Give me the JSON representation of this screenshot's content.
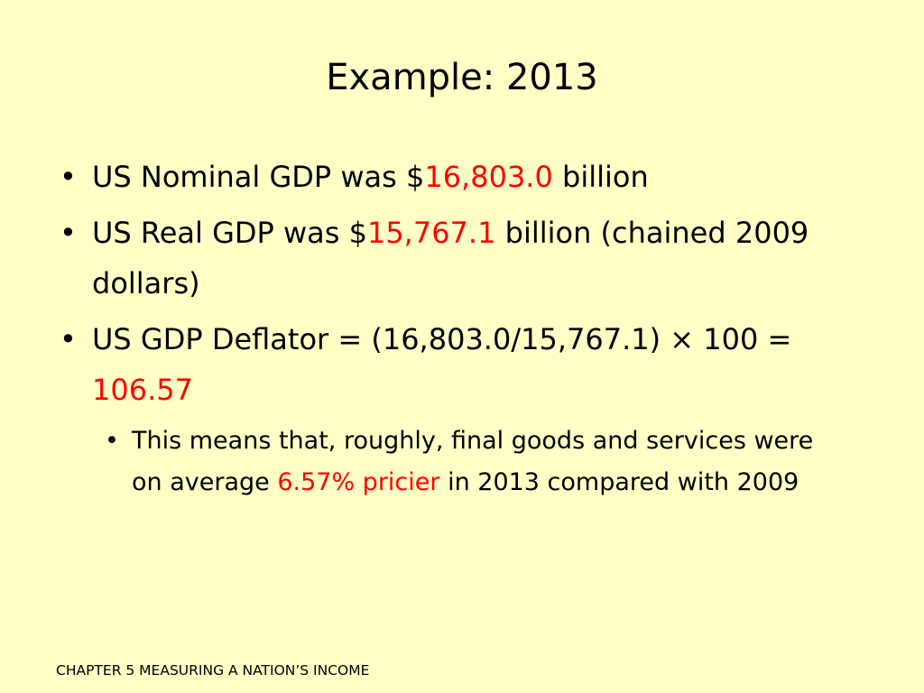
{
  "colors": {
    "background": "#ffffc6",
    "text": "#000000",
    "highlight": "#ff0000"
  },
  "slide": {
    "title": "Example: 2013",
    "bullet_glyph": "•",
    "bullets": [
      {
        "before": "US Nominal GDP was $",
        "highlight": "16,803.0",
        "after": " billion"
      },
      {
        "before": "US Real GDP was $",
        "highlight": "15,767.1",
        "after": " billion (chained 2009 dollars)"
      },
      {
        "before": "US GDP Deflator = (16,803.0/15,767.1) × 100 = ",
        "highlight": "106.57",
        "after": ""
      }
    ],
    "sub_bullet": {
      "before": "This means that, roughly, final goods and services were on average ",
      "highlight": "6.57% pricier",
      "after": " in 2013 compared with 2009"
    },
    "footer": "CHAPTER 5 MEASURING A NATION’S INCOME"
  }
}
